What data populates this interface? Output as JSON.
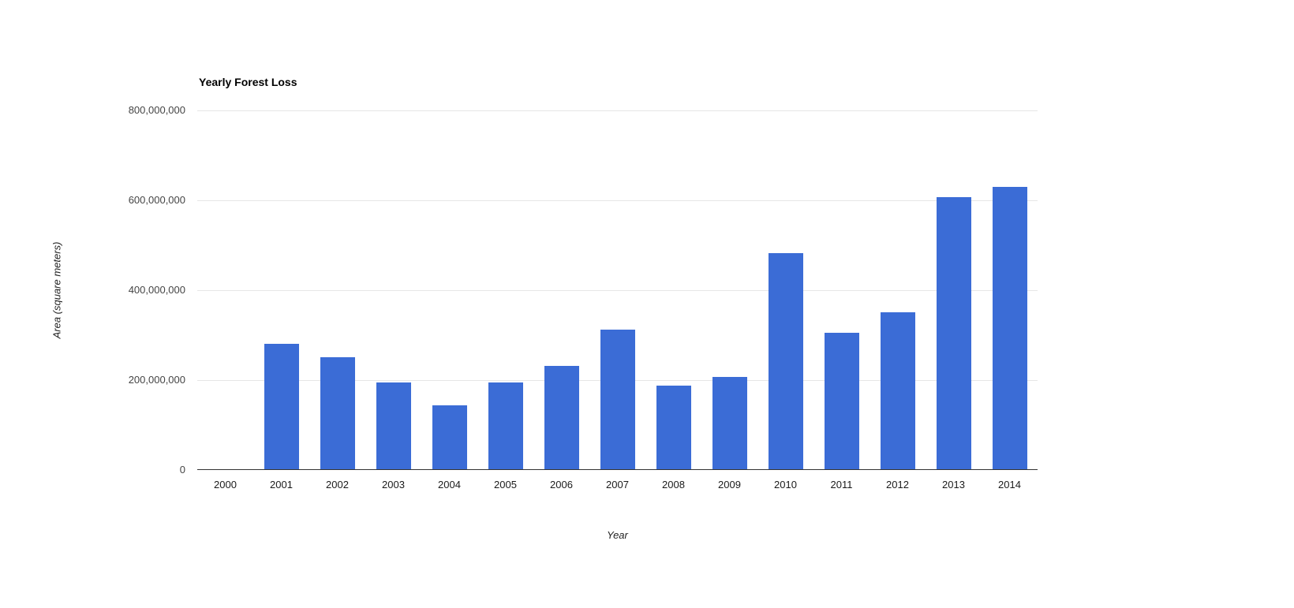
{
  "chart_data": {
    "type": "bar",
    "title": "Yearly Forest Loss",
    "xlabel": "Year",
    "ylabel": "Area (square meters)",
    "categories": [
      "2000",
      "2001",
      "2002",
      "2003",
      "2004",
      "2005",
      "2006",
      "2007",
      "2008",
      "2009",
      "2010",
      "2011",
      "2012",
      "2013",
      "2014"
    ],
    "values": [
      0,
      280000000,
      250000000,
      195000000,
      143000000,
      195000000,
      232000000,
      313000000,
      188000000,
      207000000,
      482000000,
      305000000,
      350000000,
      607000000,
      630000000
    ],
    "ylim": [
      0,
      800000000
    ],
    "yticks": [
      {
        "value": 0,
        "label": "0"
      },
      {
        "value": 200000000,
        "label": "200,000,000"
      },
      {
        "value": 400000000,
        "label": "400,000,000"
      },
      {
        "value": 600000000,
        "label": "600,000,000"
      },
      {
        "value": 800000000,
        "label": "800,000,000"
      }
    ],
    "bar_color": "#3b6cd6",
    "grid": true,
    "legend": "none"
  }
}
